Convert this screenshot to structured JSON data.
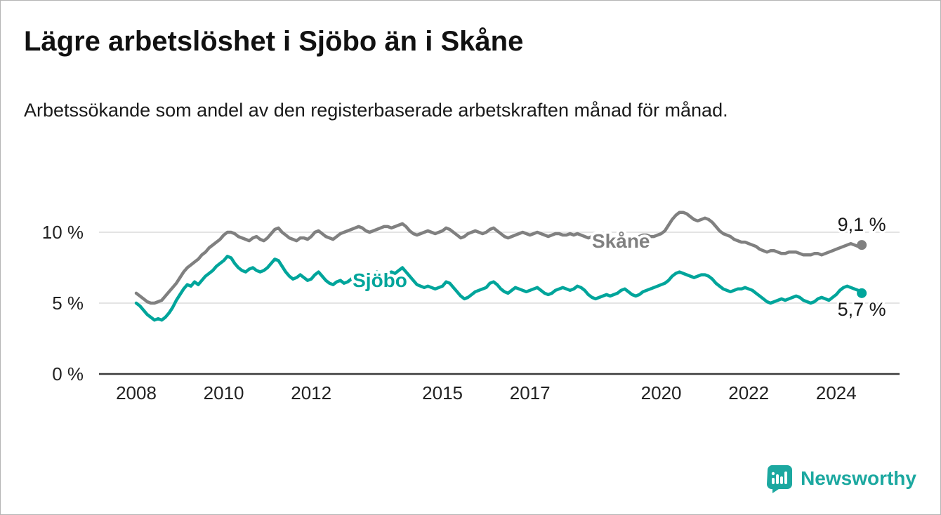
{
  "page": {
    "title": "Lägre arbetslöshet i Sjöbo än i Skåne",
    "subtitle": "Arbetssökande som andel av den registerbaserade arbetskraften månad för månad."
  },
  "branding": {
    "logo_text": "Newsworthy",
    "brand_color": "#1CA8A0"
  },
  "chart_data": {
    "type": "line",
    "title": "Lägre arbetslöshet i Sjöbo än i Skåne",
    "subtitle": "Arbetssökande som andel av den registerbaserade arbetskraften månad för månad.",
    "unit": "%",
    "x_start_year": 2008,
    "x_step_months": 1,
    "xticks": [
      2008,
      2010,
      2012,
      2015,
      2017,
      2020,
      2022,
      2024
    ],
    "yticks": [
      {
        "value": 0,
        "label": "0 %"
      },
      {
        "value": 5,
        "label": "5 %"
      },
      {
        "value": 10,
        "label": "10 %"
      }
    ],
    "ylim": [
      0,
      12.5
    ],
    "grid": true,
    "legend_position": "inline",
    "series": [
      {
        "name": "Skåne",
        "color": "#808080",
        "end_label": "9,1 %",
        "end_value": 9.1,
        "values": [
          5.7,
          5.5,
          5.3,
          5.1,
          5.0,
          5.0,
          5.1,
          5.2,
          5.5,
          5.8,
          6.1,
          6.4,
          6.8,
          7.2,
          7.5,
          7.7,
          7.9,
          8.1,
          8.4,
          8.6,
          8.9,
          9.1,
          9.3,
          9.5,
          9.8,
          10.0,
          10.0,
          9.9,
          9.7,
          9.6,
          9.5,
          9.4,
          9.6,
          9.7,
          9.5,
          9.4,
          9.6,
          9.9,
          10.2,
          10.3,
          10.0,
          9.8,
          9.6,
          9.5,
          9.4,
          9.6,
          9.6,
          9.5,
          9.7,
          10.0,
          10.1,
          9.9,
          9.7,
          9.6,
          9.5,
          9.7,
          9.9,
          10.0,
          10.1,
          10.2,
          10.3,
          10.4,
          10.3,
          10.1,
          10.0,
          10.1,
          10.2,
          10.3,
          10.4,
          10.4,
          10.3,
          10.4,
          10.5,
          10.6,
          10.4,
          10.1,
          9.9,
          9.8,
          9.9,
          10.0,
          10.1,
          10.0,
          9.9,
          10.0,
          10.1,
          10.3,
          10.2,
          10.0,
          9.8,
          9.6,
          9.7,
          9.9,
          10.0,
          10.1,
          10.0,
          9.9,
          10.0,
          10.2,
          10.3,
          10.1,
          9.9,
          9.7,
          9.6,
          9.7,
          9.8,
          9.9,
          10.0,
          9.9,
          9.8,
          9.9,
          10.0,
          9.9,
          9.8,
          9.7,
          9.8,
          9.9,
          9.9,
          9.8,
          9.8,
          9.9,
          9.8,
          9.9,
          9.8,
          9.7,
          9.6,
          9.7,
          9.8,
          9.8,
          9.7,
          9.6,
          9.6,
          9.7,
          9.6,
          9.6,
          9.5,
          9.4,
          9.4,
          9.5,
          9.7,
          9.8,
          9.8,
          9.7,
          9.7,
          9.8,
          9.9,
          10.1,
          10.5,
          10.9,
          11.2,
          11.4,
          11.4,
          11.3,
          11.1,
          10.9,
          10.8,
          10.9,
          11.0,
          10.9,
          10.7,
          10.4,
          10.1,
          9.9,
          9.8,
          9.7,
          9.5,
          9.4,
          9.3,
          9.3,
          9.2,
          9.1,
          9.0,
          8.8,
          8.7,
          8.6,
          8.7,
          8.7,
          8.6,
          8.5,
          8.5,
          8.6,
          8.6,
          8.6,
          8.5,
          8.4,
          8.4,
          8.4,
          8.5,
          8.5,
          8.4,
          8.5,
          8.6,
          8.7,
          8.8,
          8.9,
          9.0,
          9.1,
          9.2,
          9.1,
          9.0,
          9.1
        ]
      },
      {
        "name": "Sjöbo",
        "color": "#00A59B",
        "end_label": "5,7 %",
        "end_value": 5.7,
        "values": [
          5.0,
          4.8,
          4.5,
          4.2,
          4.0,
          3.8,
          3.9,
          3.8,
          4.0,
          4.3,
          4.7,
          5.2,
          5.6,
          6.0,
          6.3,
          6.2,
          6.5,
          6.3,
          6.6,
          6.9,
          7.1,
          7.3,
          7.6,
          7.8,
          8.0,
          8.3,
          8.2,
          7.8,
          7.5,
          7.3,
          7.2,
          7.4,
          7.5,
          7.3,
          7.2,
          7.3,
          7.5,
          7.8,
          8.1,
          8.0,
          7.6,
          7.2,
          6.9,
          6.7,
          6.8,
          7.0,
          6.8,
          6.6,
          6.7,
          7.0,
          7.2,
          6.9,
          6.6,
          6.4,
          6.3,
          6.5,
          6.6,
          6.4,
          6.5,
          6.7,
          6.9,
          7.1,
          7.0,
          6.8,
          6.9,
          7.0,
          7.2,
          7.1,
          7.0,
          7.1,
          7.2,
          7.1,
          7.3,
          7.5,
          7.2,
          6.9,
          6.6,
          6.3,
          6.2,
          6.1,
          6.2,
          6.1,
          6.0,
          6.1,
          6.2,
          6.5,
          6.4,
          6.1,
          5.8,
          5.5,
          5.3,
          5.4,
          5.6,
          5.8,
          5.9,
          6.0,
          6.1,
          6.4,
          6.5,
          6.3,
          6.0,
          5.8,
          5.7,
          5.9,
          6.1,
          6.0,
          5.9,
          5.8,
          5.9,
          6.0,
          6.1,
          5.9,
          5.7,
          5.6,
          5.7,
          5.9,
          6.0,
          6.1,
          6.0,
          5.9,
          6.0,
          6.2,
          6.1,
          5.9,
          5.6,
          5.4,
          5.3,
          5.4,
          5.5,
          5.6,
          5.5,
          5.6,
          5.7,
          5.9,
          6.0,
          5.8,
          5.6,
          5.5,
          5.6,
          5.8,
          5.9,
          6.0,
          6.1,
          6.2,
          6.3,
          6.4,
          6.6,
          6.9,
          7.1,
          7.2,
          7.1,
          7.0,
          6.9,
          6.8,
          6.9,
          7.0,
          7.0,
          6.9,
          6.7,
          6.4,
          6.2,
          6.0,
          5.9,
          5.8,
          5.9,
          6.0,
          6.0,
          6.1,
          6.0,
          5.9,
          5.7,
          5.5,
          5.3,
          5.1,
          5.0,
          5.1,
          5.2,
          5.3,
          5.2,
          5.3,
          5.4,
          5.5,
          5.4,
          5.2,
          5.1,
          5.0,
          5.1,
          5.3,
          5.4,
          5.3,
          5.2,
          5.4,
          5.6,
          5.9,
          6.1,
          6.2,
          6.1,
          6.0,
          5.9,
          5.7
        ]
      }
    ]
  }
}
